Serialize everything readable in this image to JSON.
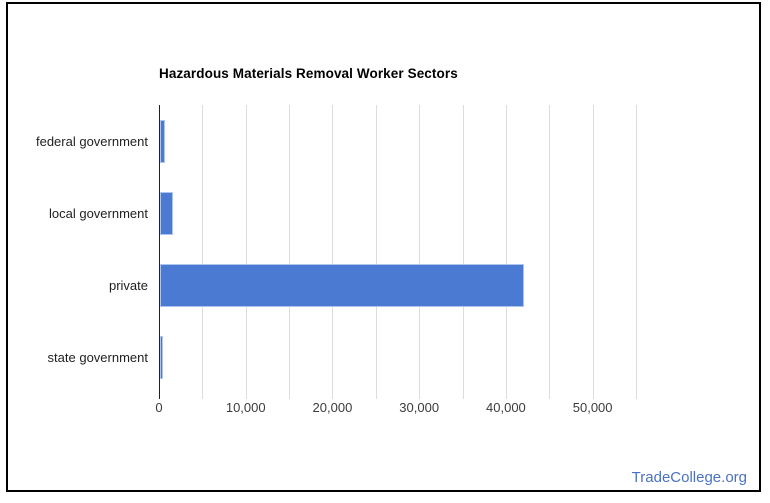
{
  "card": {
    "border_color": "#000000",
    "background": "#ffffff"
  },
  "footer": {
    "brand_label": "TradeCollege.org",
    "brand_color": "#4a72c4"
  },
  "chart_data": {
    "type": "bar",
    "orientation": "horizontal",
    "title": "Hazardous Materials Removal Worker Sectors",
    "categories": [
      "federal government",
      "local government",
      "private",
      "state government"
    ],
    "values": [
      580,
      1550,
      42000,
      350
    ],
    "xlabel": "",
    "ylabel": "",
    "legend": "none",
    "grid": "vertical",
    "axis": {
      "min": 0,
      "max": 55000,
      "gridline_step": 5000,
      "label_step": 10000,
      "tick_labels": [
        "0",
        "10,000",
        "20,000",
        "30,000",
        "40,000",
        "50,000"
      ]
    },
    "bar_color": "#4a7ad2",
    "bar_border_color": "#aec6ef",
    "gridline_color": "#dcdcdc",
    "axisline_color": "#212121"
  }
}
